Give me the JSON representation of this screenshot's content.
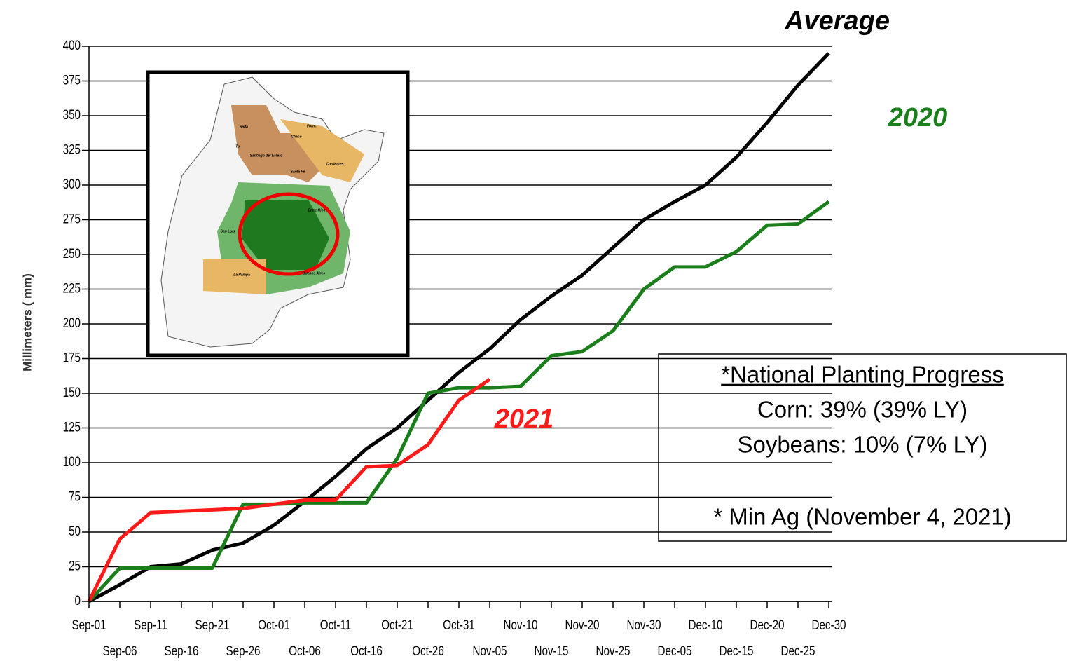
{
  "chart_data": {
    "type": "line",
    "ylabel": "Millimeters ( mm)",
    "categories": [
      "Sep-01",
      "Sep-06",
      "Sep-11",
      "Sep-16",
      "Sep-21",
      "Sep-26",
      "Oct-01",
      "Oct-06",
      "Oct-11",
      "Oct-16",
      "Oct-21",
      "Oct-26",
      "Oct-31",
      "Nov-05",
      "Nov-10",
      "Nov-15",
      "Nov-20",
      "Nov-25",
      "Nov-30",
      "Dec-05",
      "Dec-10",
      "Dec-15",
      "Dec-20",
      "Dec-25",
      "Dec-30"
    ],
    "series": [
      {
        "name": "Average",
        "color": "#000000",
        "values": [
          0,
          12,
          25,
          27,
          37,
          42,
          55,
          72,
          90,
          110,
          125,
          145,
          165,
          182,
          203,
          220,
          235,
          255,
          275,
          288,
          300,
          320,
          345,
          372,
          395
        ]
      },
      {
        "name": "2020",
        "color": "#1a7f1a",
        "values": [
          0,
          24,
          24,
          24,
          24,
          70,
          70,
          71,
          71,
          71,
          103,
          150,
          154,
          154,
          155,
          177,
          180,
          195,
          225,
          241,
          241,
          252,
          271,
          272,
          288
        ]
      },
      {
        "name": "2021",
        "color": "#ff1a1a",
        "values": [
          0,
          45,
          64,
          65,
          66,
          67,
          70,
          73,
          73,
          97,
          98,
          113,
          145,
          160,
          null,
          null,
          null,
          null,
          null,
          null,
          null,
          null,
          null,
          null,
          null
        ]
      }
    ],
    "ylim": [
      0,
      400
    ],
    "yticks": [
      0,
      25,
      50,
      75,
      100,
      125,
      150,
      175,
      200,
      225,
      250,
      275,
      300,
      325,
      350,
      375,
      400
    ],
    "grid": true,
    "info_box": [
      "*National Planting Progress",
      "Corn: 39% (39% LY)",
      "Soybeans: 10% (7% LY)",
      "* Min Ag (November 4, 2021)"
    ],
    "map_labels": [
      "Salta",
      "Form.",
      "Chaco",
      "Tu.",
      "Santiago del Estero",
      "Corrientes",
      "Santa Fe",
      "Entre Rios",
      "San Luis",
      "La Pampa",
      "Buenos Aires"
    ]
  }
}
